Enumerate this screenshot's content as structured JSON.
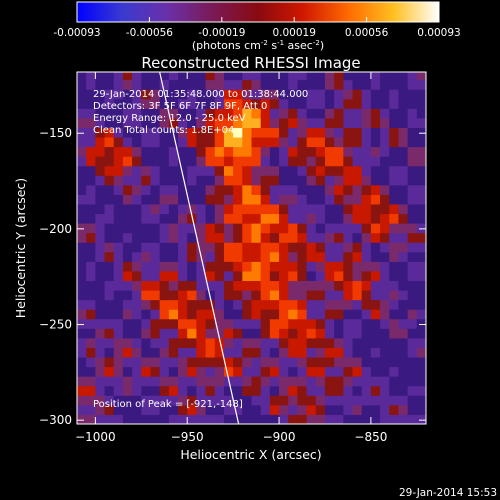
{
  "colorbar": {
    "ticks": [
      "-0.00093",
      "-0.00056",
      "-0.00019",
      "0.00019",
      "0.00056",
      "0.00093"
    ],
    "unit_main": "(photons cm",
    "unit_e1": "-2",
    "unit_s": " s",
    "unit_e2": "-1",
    "unit_a": " asec",
    "unit_e3": "-2",
    "unit_end": ")",
    "colors": [
      "#0000ff",
      "#3a3ad0",
      "#6a30a8",
      "#7a1a55",
      "#8a0a10",
      "#d01800",
      "#ff6a00",
      "#ffc020",
      "#ffffff"
    ]
  },
  "chart_data": {
    "type": "heatmap",
    "title": "Reconstructed RHESSI Image",
    "xlabel": "Heliocentric X (arcsec)",
    "ylabel": "Heliocentric Y (arcsec)",
    "xlim": [
      -1010,
      -820
    ],
    "ylim": [
      -302,
      -118
    ],
    "x_ticks": [
      -1000,
      -950,
      -900,
      -850
    ],
    "y_ticks": [
      -150,
      -200,
      -250,
      -300
    ],
    "clim": [
      -0.00093,
      0.00093
    ],
    "peak": {
      "x": -921,
      "y": -148
    },
    "limb_line": [
      [
        -965,
        -118
      ],
      [
        -922,
        -302
      ]
    ],
    "info": [
      "29-Jan-2014 01:35:48.000 to 01:38:44.000",
      "Detectors: 3F 5F 6F 7F 8F 9F, Att 0",
      "Energy Range: 12.0 - 25.0 keV",
      "Clean    Total counts: 1.8E+04"
    ],
    "peak_label": "Position of Peak = [-921,-148]"
  },
  "footer": {
    "timestamp": "29-Jan-2014 15:53"
  }
}
